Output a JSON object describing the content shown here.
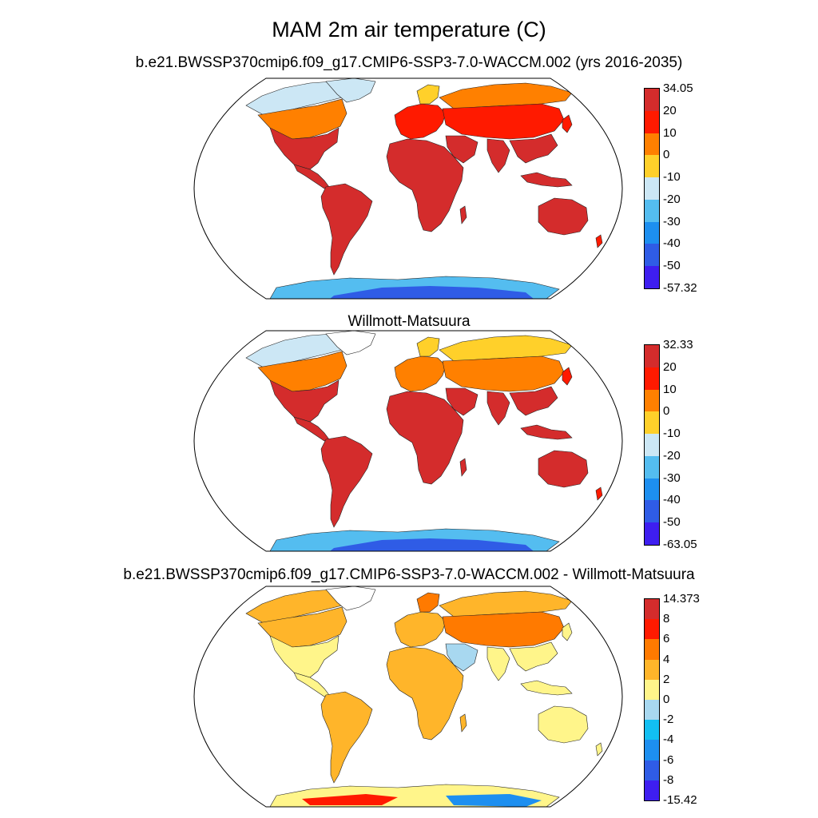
{
  "title": "MAM 2m air temperature (C)",
  "panels": [
    {
      "title": "b.e21.BWSSP370cmip6.f09_g17.CMIP6-SSP3-7.0-WACCM.002 (yrs 2016-2035)",
      "colorbar": {
        "labels": [
          "34.05",
          "20",
          "10",
          "0",
          "-10",
          "-20",
          "-30",
          "-40",
          "-50",
          "-57.32"
        ],
        "colors": [
          "#d42c2c",
          "#ff1a00",
          "#ff8000",
          "#ffd02a",
          "#cce7f5",
          "#54bdf0",
          "#1d8ff0",
          "#2f5ce6",
          "#3e1ef0"
        ]
      }
    },
    {
      "title": "Willmott-Matsuura",
      "colorbar": {
        "labels": [
          "32.33",
          "20",
          "10",
          "0",
          "-10",
          "-20",
          "-30",
          "-40",
          "-50",
          "-63.05"
        ],
        "colors": [
          "#d42c2c",
          "#ff1a00",
          "#ff8000",
          "#ffd02a",
          "#cce7f5",
          "#54bdf0",
          "#1d8ff0",
          "#2f5ce6",
          "#3e1ef0"
        ]
      }
    },
    {
      "title": "b.e21.BWSSP370cmip6.f09_g17.CMIP6-SSP3-7.0-WACCM.002 - Willmott-Matsuura",
      "colorbar": {
        "labels": [
          "14.373",
          "8",
          "6",
          "4",
          "2",
          "0",
          "-2",
          "-4",
          "-6",
          "-8",
          "-15.42"
        ],
        "colors": [
          "#d42c2c",
          "#ff1a00",
          "#ff7a00",
          "#ffb52a",
          "#fff58a",
          "#a8d8f0",
          "#12bff2",
          "#1d8ff0",
          "#2f5ce6",
          "#3e1ef0"
        ]
      }
    }
  ]
}
